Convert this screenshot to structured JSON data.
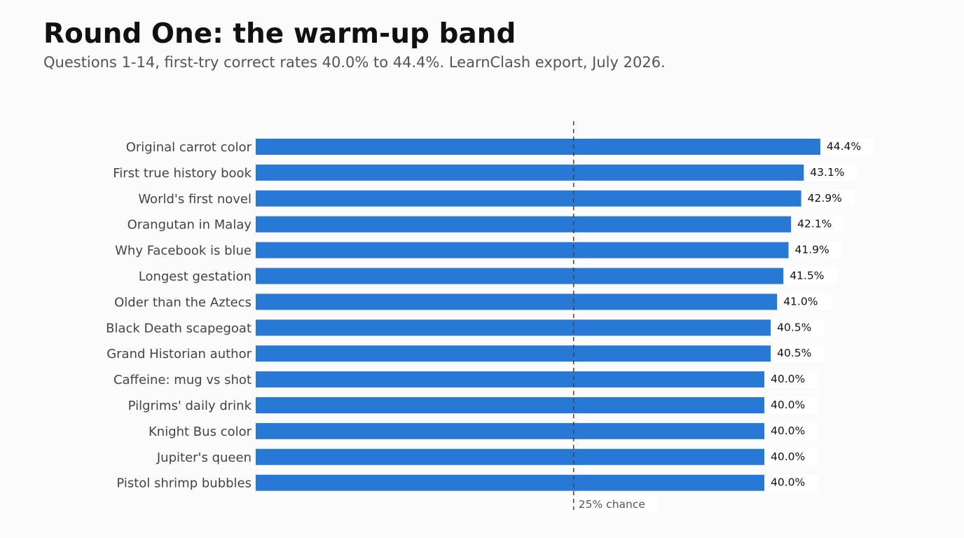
{
  "chart_data": {
    "type": "bar",
    "orientation": "horizontal",
    "title": "Round One: the warm-up band",
    "subtitle": "Questions 1-14, first-try correct rates 40.0% to 44.4%. LearnClash export, July 2026.",
    "categories": [
      "Original carrot color",
      "First true history book",
      "World's first novel",
      "Orangutan in Malay",
      "Why Facebook is blue",
      "Longest gestation",
      "Older than the Aztecs",
      "Black Death scapegoat",
      "Grand Historian author",
      "Caffeine: mug vs shot",
      "Pilgrims' daily drink",
      "Knight Bus color",
      "Jupiter's queen",
      "Pistol shrimp bubbles"
    ],
    "values": [
      44.4,
      43.1,
      42.9,
      42.1,
      41.9,
      41.5,
      41.0,
      40.5,
      40.5,
      40.0,
      40.0,
      40.0,
      40.0,
      40.0
    ],
    "value_labels": [
      "44.4%",
      "43.1%",
      "42.9%",
      "42.1%",
      "41.9%",
      "41.5%",
      "41.0%",
      "40.5%",
      "40.5%",
      "40.0%",
      "40.0%",
      "40.0%",
      "40.0%",
      "40.0%"
    ],
    "xlim": [
      0,
      50
    ],
    "reference_line": {
      "value": 25,
      "label": "25% chance",
      "style": "dashed"
    },
    "bar_color": "#2878d6",
    "grid": false,
    "legend": "none"
  }
}
